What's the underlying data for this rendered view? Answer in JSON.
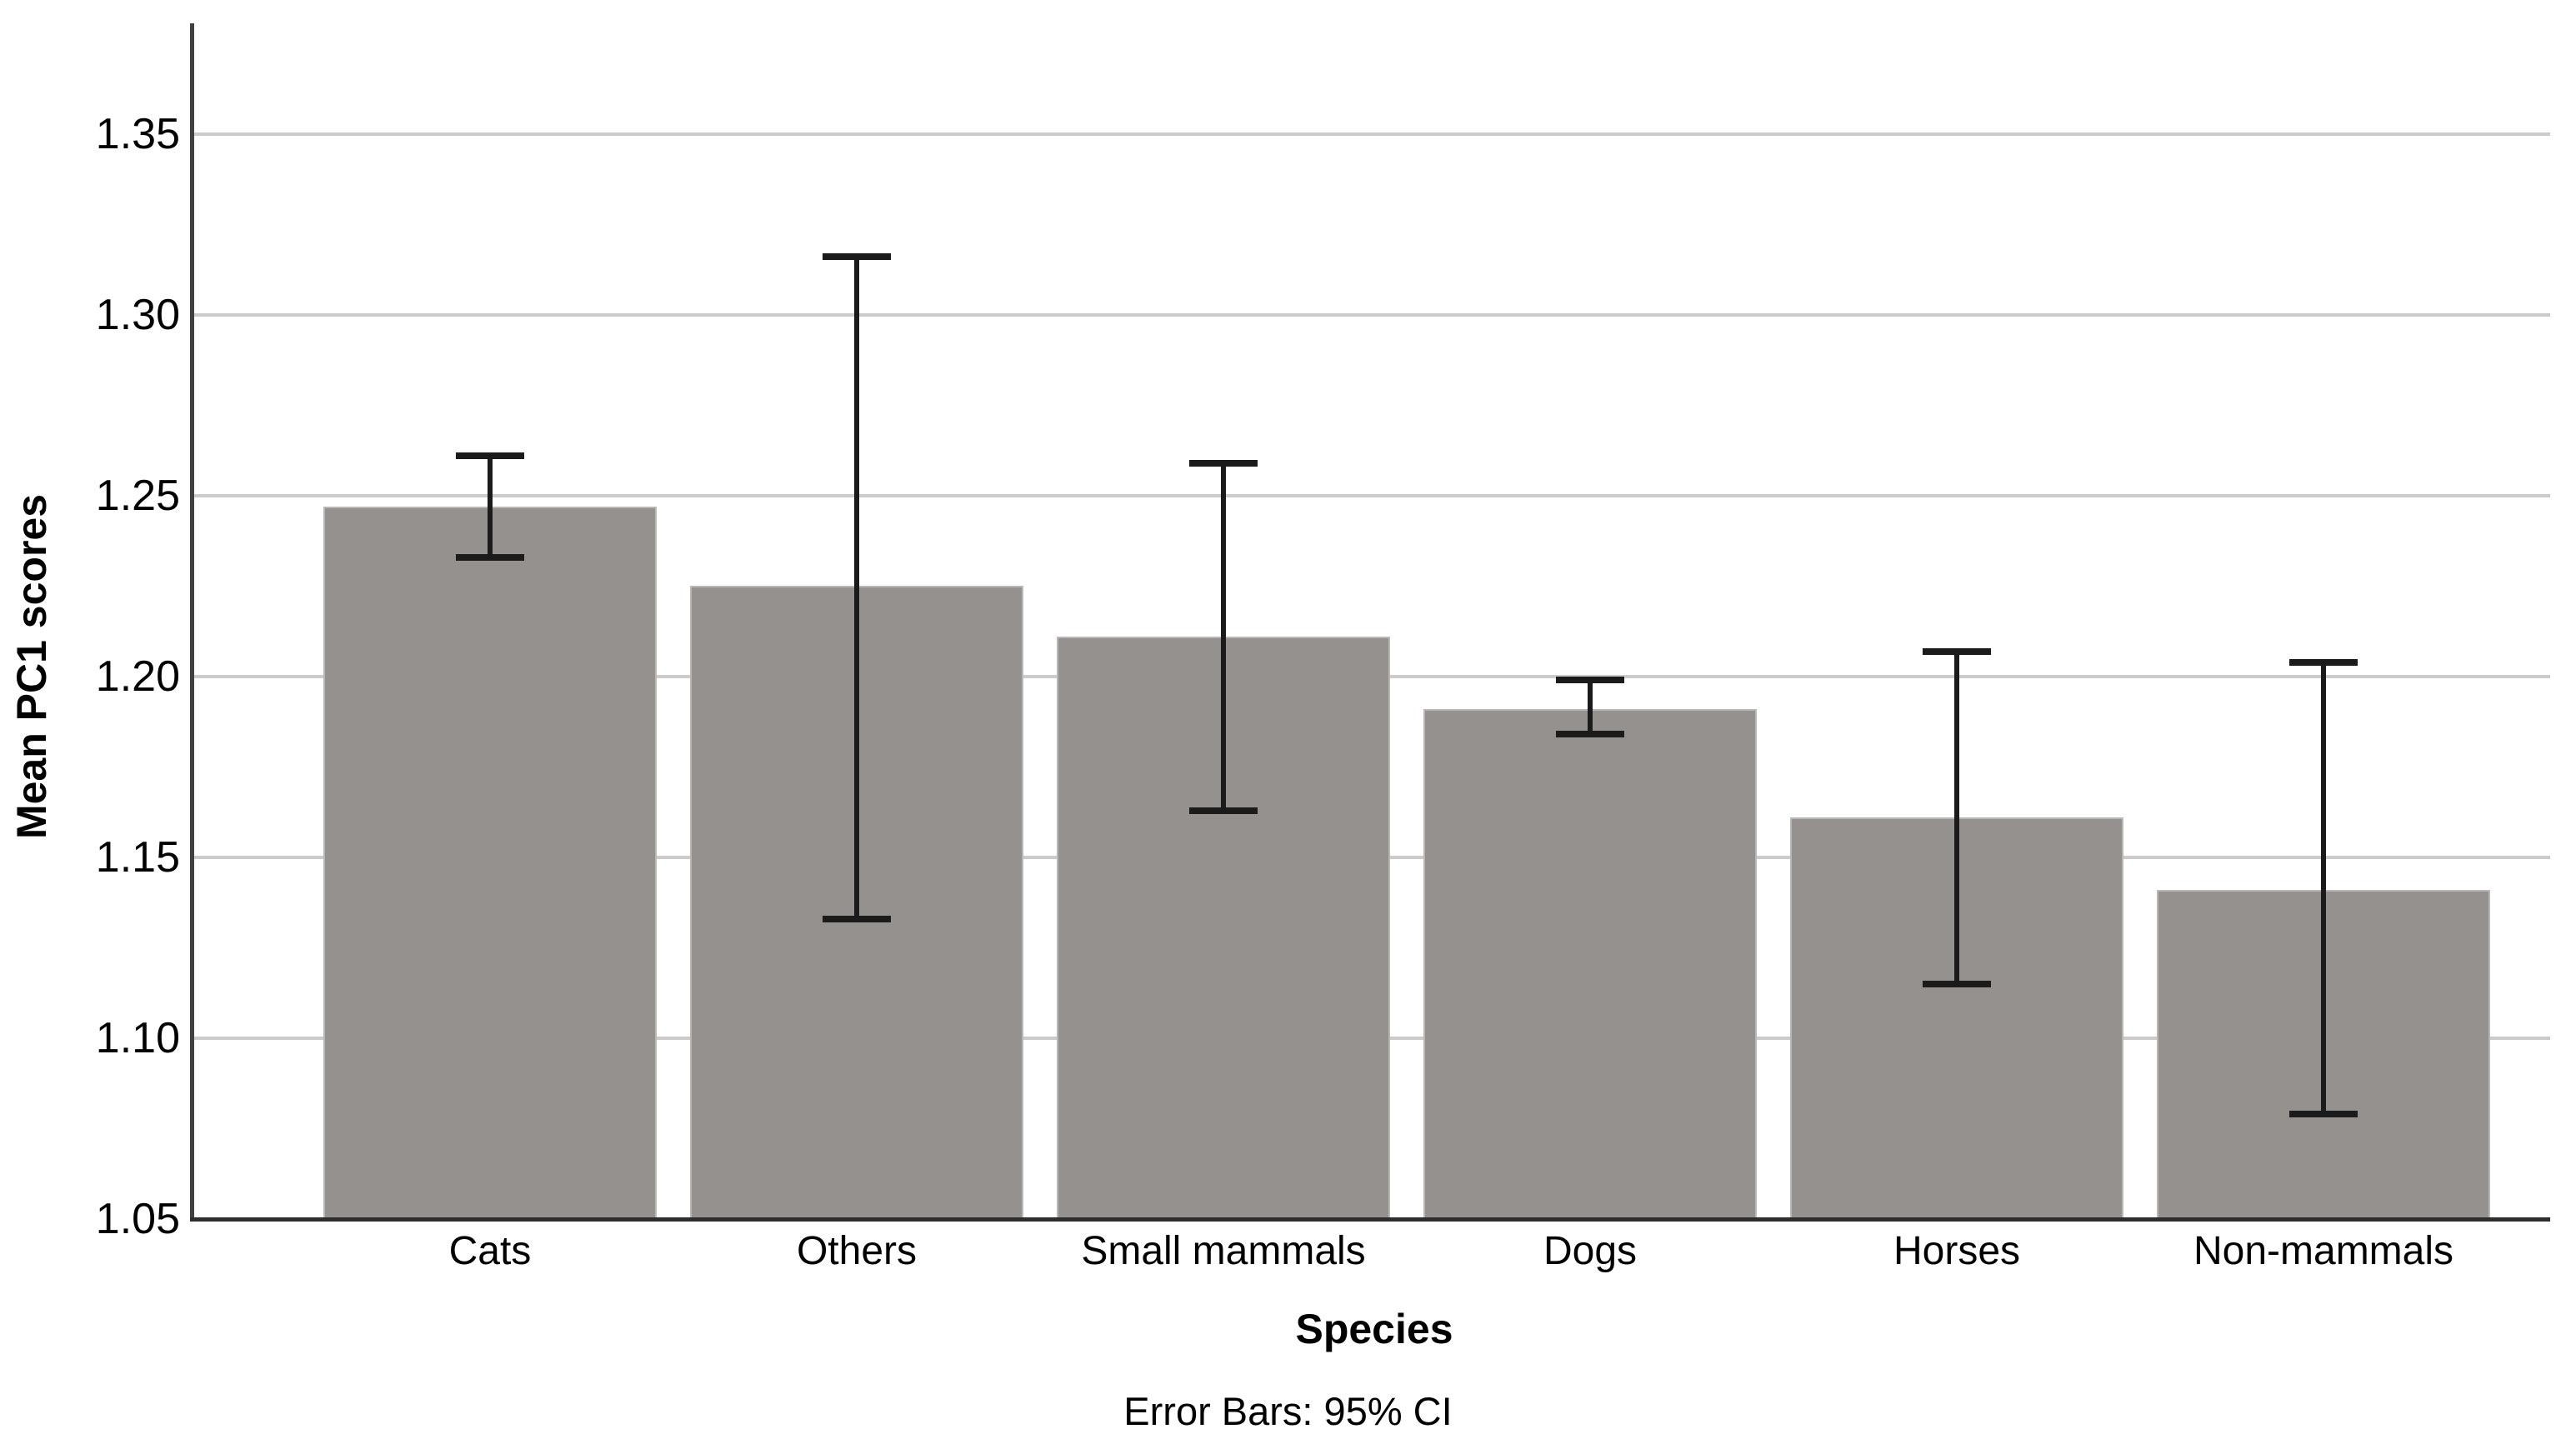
{
  "figure": {
    "background": "#ffffff"
  },
  "chart_data": {
    "type": "bar",
    "title": "",
    "xlabel": "Species",
    "ylabel": "Mean PC1 scores",
    "footnote": "Error Bars: 95% CI",
    "categories": [
      "Cats",
      "Others",
      "Small mammals",
      "Dogs",
      "Horses",
      "Non-mammals"
    ],
    "series": [
      {
        "name": "Mean PC1 scores",
        "values": [
          1.247,
          1.225,
          1.211,
          1.191,
          1.161,
          1.141
        ]
      }
    ],
    "error_bars": {
      "type": "95% CI",
      "low": [
        1.233,
        1.133,
        1.163,
        1.184,
        1.115,
        1.079
      ],
      "high": [
        1.261,
        1.316,
        1.259,
        1.199,
        1.207,
        1.204
      ]
    },
    "ylim": [
      1.05,
      1.3806
    ],
    "y_ticks": [
      1.05,
      1.1,
      1.15,
      1.2,
      1.25,
      1.3,
      1.35
    ],
    "y_tick_decimals": 2,
    "grid": "horizontal",
    "legend": "none",
    "bar_color": "#95918f",
    "bar_border_color": "#bab7b6",
    "error_bar_color": "#1b1b1b",
    "gridline_color": "#cbcbcb",
    "y_axis_color": "#404040",
    "x_axis_color": "#2e2e2e",
    "background_color": "#ffffff"
  }
}
